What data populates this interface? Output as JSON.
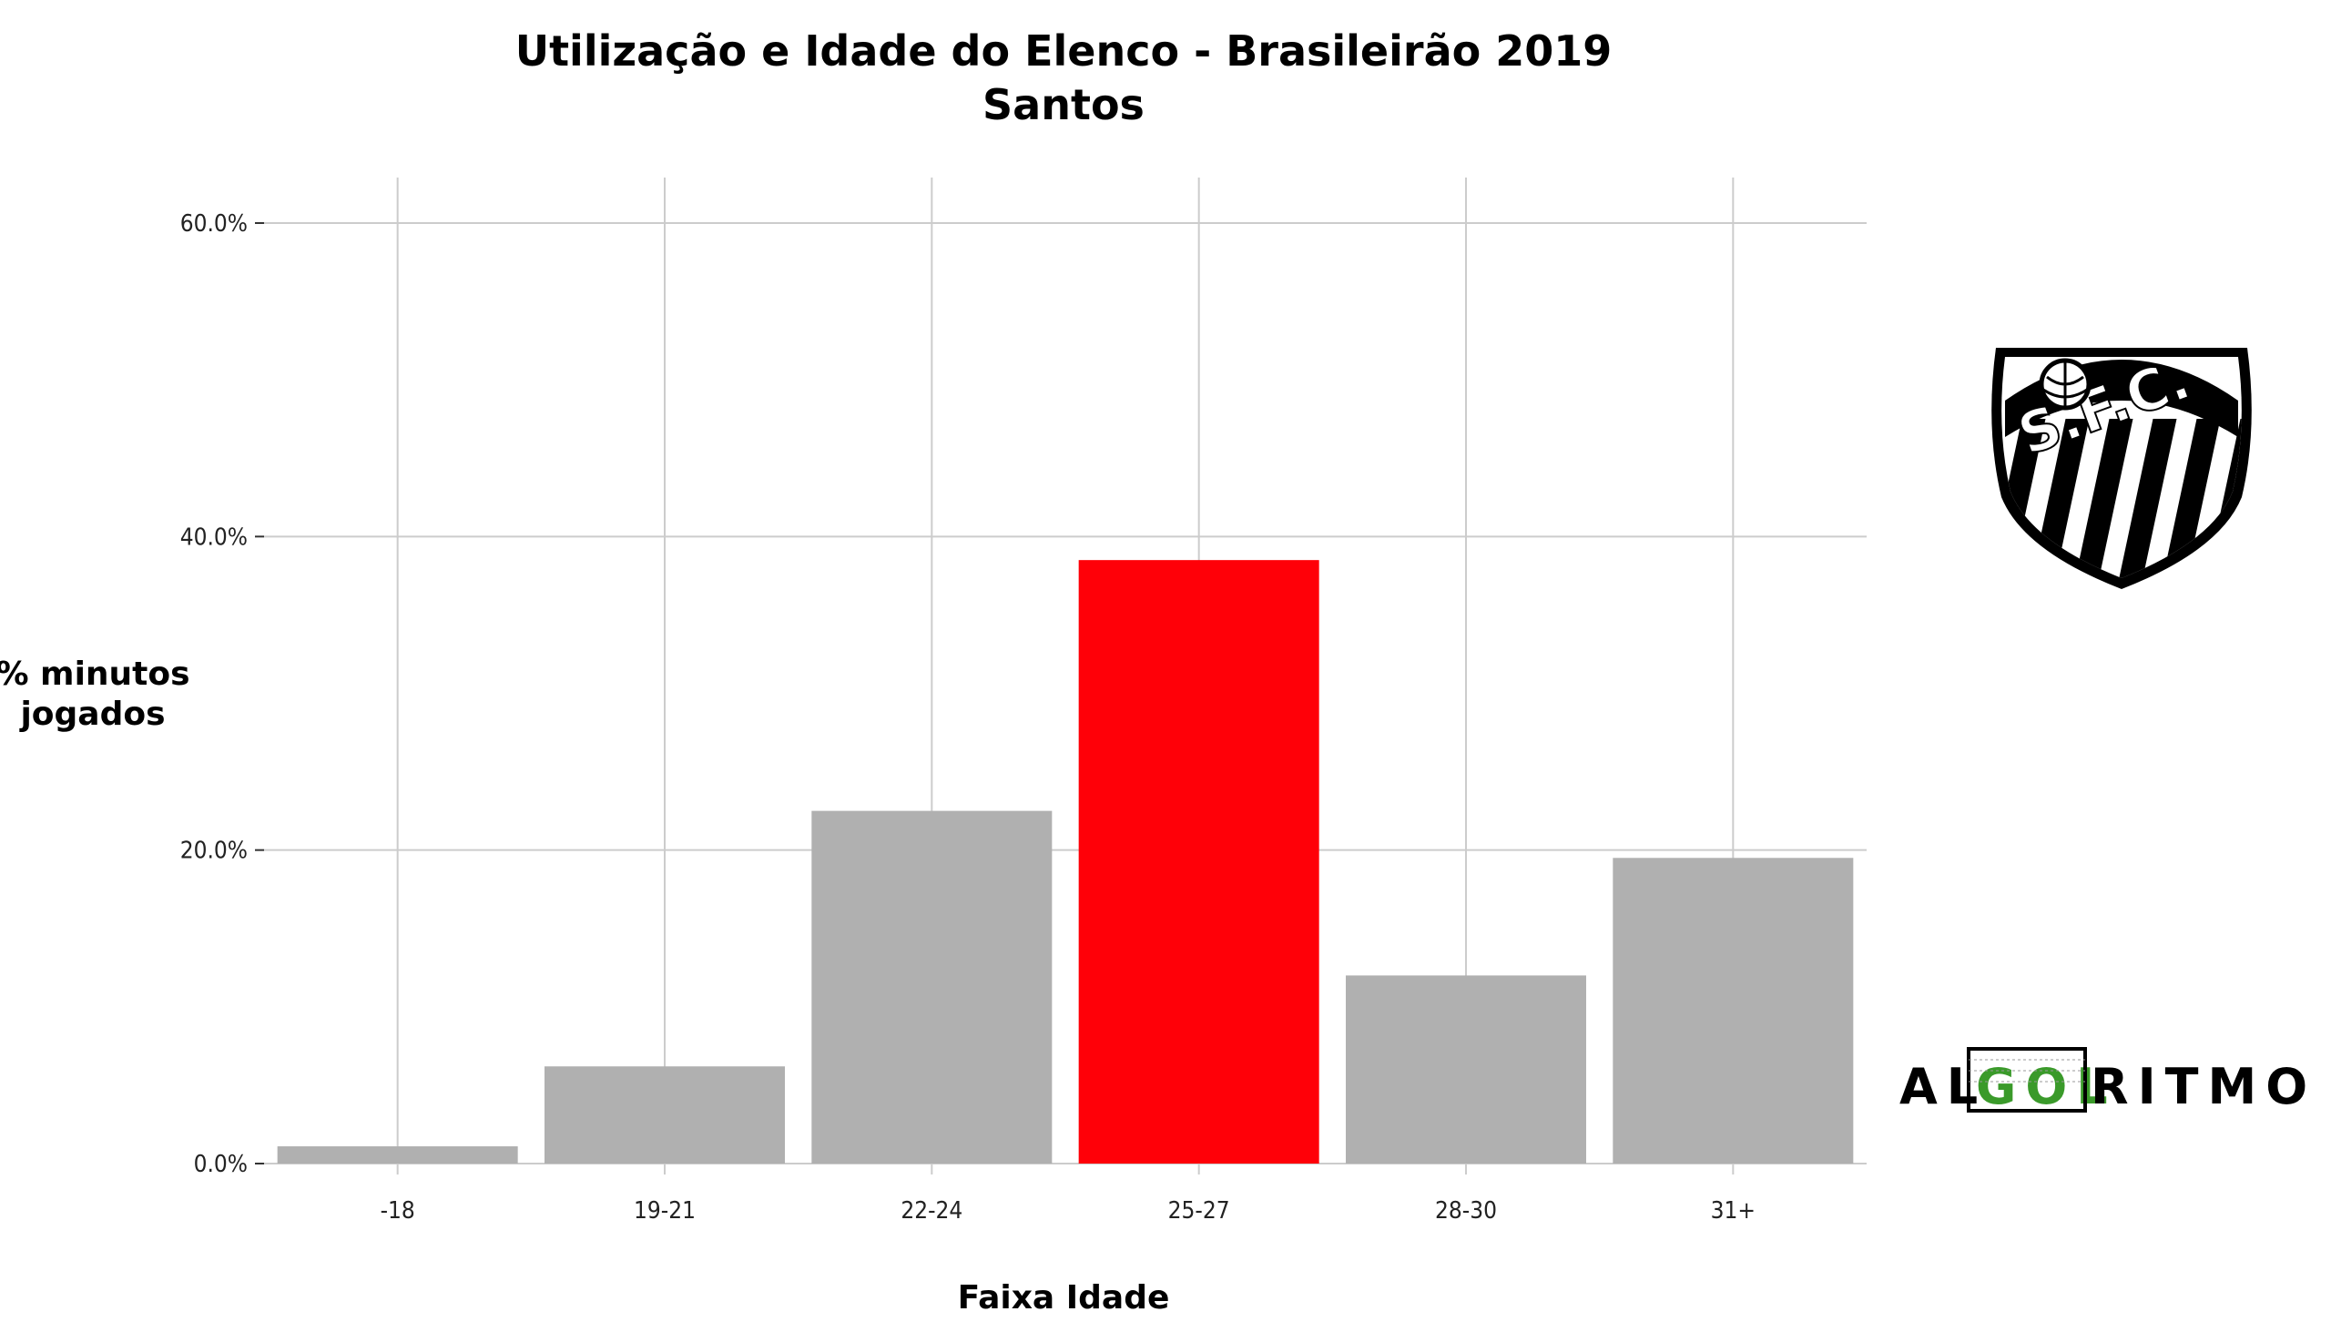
{
  "chart_data": {
    "type": "bar",
    "title": "Utilização e Idade do Elenco - Brasileirão 2019",
    "subtitle": "Santos",
    "xlabel": "Faixa Idade",
    "ylabel_line1": "% minutos",
    "ylabel_line2": "jogados",
    "categories": [
      "-18",
      "19-21",
      "22-24",
      "25-27",
      "28-30",
      "31+"
    ],
    "values": [
      1.1,
      6.2,
      22.5,
      38.5,
      12.0,
      19.5
    ],
    "highlight_index": 3,
    "ylim": [
      0,
      60
    ],
    "y_ticks": [
      0,
      20,
      40,
      60
    ],
    "y_tick_labels": [
      "0.0%",
      "20.0%",
      "40.0%",
      "60.0%"
    ],
    "grid": true,
    "colors": {
      "bar": "#b0b0b0",
      "highlight": "#ff0008",
      "grid": "#cccccc"
    }
  },
  "logos": {
    "club_badge": "santos-fc-badge",
    "club_badge_text": "S.F.C.",
    "brand_prefix": "AL",
    "brand_middle": "GOL",
    "brand_suffix": "RITMO",
    "brand_middle_color": "#3a9a2a"
  }
}
